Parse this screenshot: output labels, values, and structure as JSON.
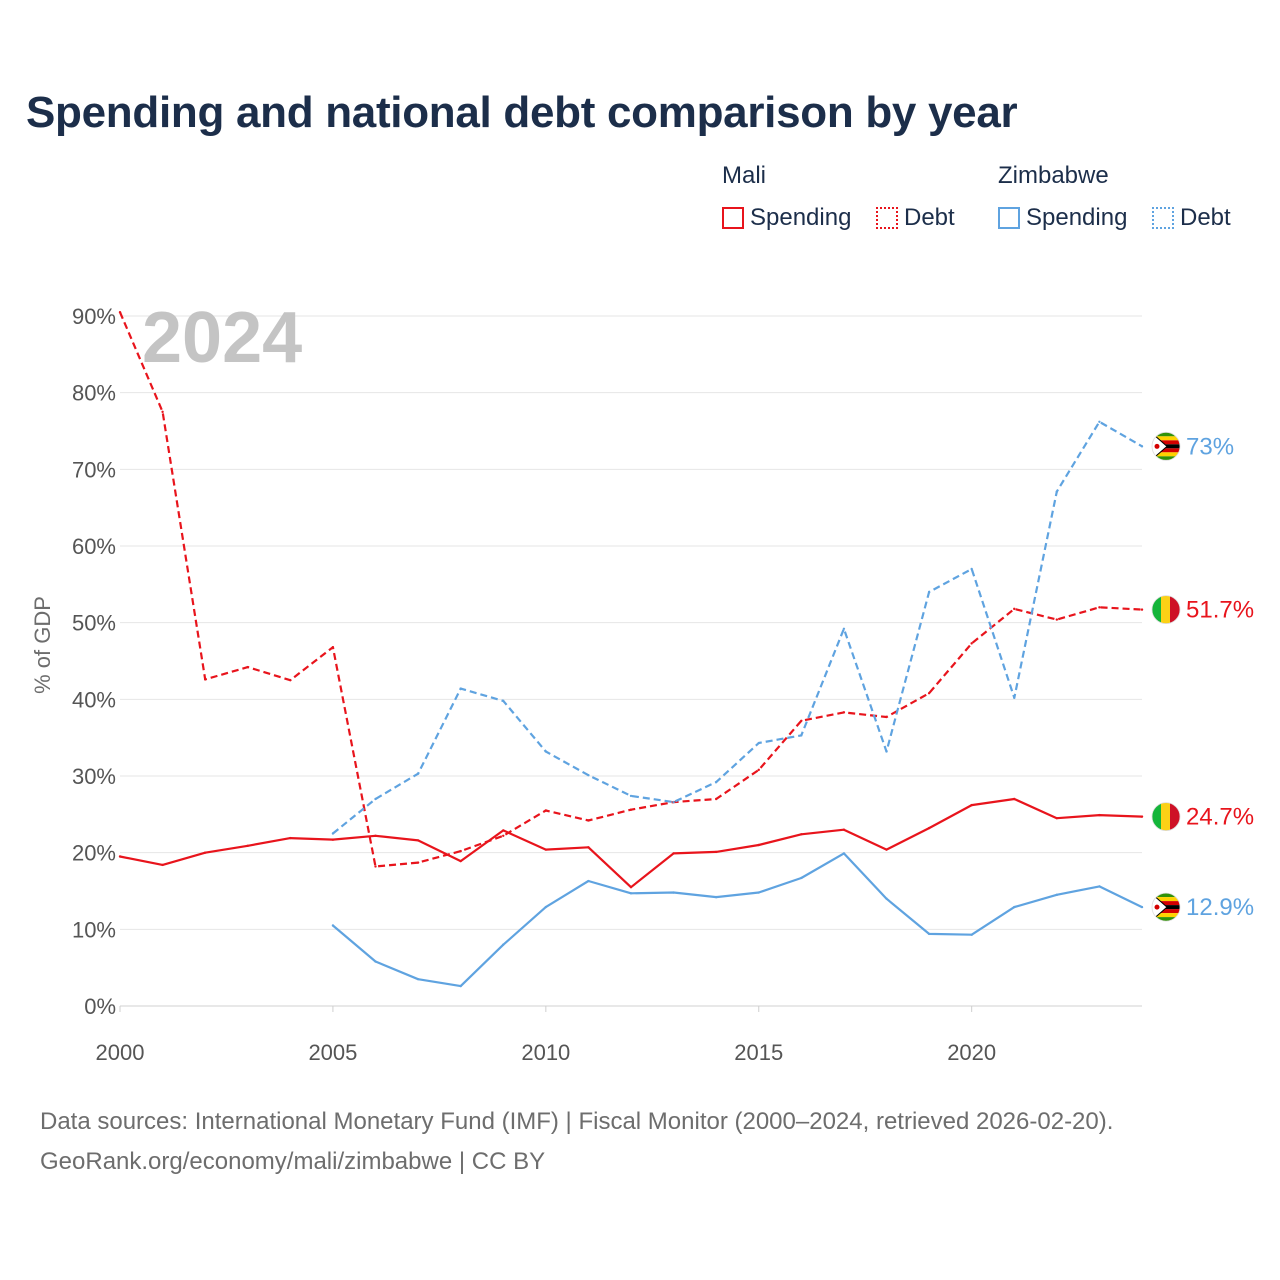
{
  "header": {
    "title": "Spending and national debt comparison by year"
  },
  "legend": {
    "groups": [
      {
        "country": "Mali",
        "spending_label": "Spending",
        "debt_label": "Debt",
        "color": "#e8141c"
      },
      {
        "country": "Zimbabwe",
        "spending_label": "Spending",
        "debt_label": "Debt",
        "color": "#5fa3e0"
      }
    ]
  },
  "chart_data": {
    "type": "line",
    "watermark_year": "2024",
    "ylabel": "% of GDP",
    "xlabel": "",
    "xlim": [
      2000,
      2024
    ],
    "ylim": [
      0,
      90
    ],
    "x_ticks": [
      "2000",
      "2005",
      "2010",
      "2015",
      "2020"
    ],
    "y_ticks": [
      "0%",
      "10%",
      "20%",
      "30%",
      "40%",
      "50%",
      "60%",
      "70%",
      "80%",
      "90%"
    ],
    "series": [
      {
        "name": "Mali Debt",
        "country": "Mali",
        "style": "dashed",
        "color": "#e8141c",
        "end_label": "51.7%",
        "points": [
          [
            2000,
            90.5
          ],
          [
            2001,
            77.5
          ],
          [
            2002,
            42.6
          ],
          [
            2003,
            44.2
          ],
          [
            2004,
            42.5
          ],
          [
            2005,
            46.8
          ],
          [
            2006,
            18.2
          ],
          [
            2007,
            18.7
          ],
          [
            2008,
            20.2
          ],
          [
            2009,
            22.2
          ],
          [
            2010,
            25.5
          ],
          [
            2011,
            24.2
          ],
          [
            2012,
            25.6
          ],
          [
            2013,
            26.6
          ],
          [
            2014,
            27.0
          ],
          [
            2015,
            30.8
          ],
          [
            2016,
            37.2
          ],
          [
            2017,
            38.3
          ],
          [
            2018,
            37.7
          ],
          [
            2019,
            40.8
          ],
          [
            2020,
            47.3
          ],
          [
            2021,
            51.8
          ],
          [
            2022,
            50.4
          ],
          [
            2023,
            52.0
          ],
          [
            2024,
            51.7
          ]
        ]
      },
      {
        "name": "Mali Spending",
        "country": "Mali",
        "style": "solid",
        "color": "#e8141c",
        "end_label": "24.7%",
        "points": [
          [
            2000,
            19.5
          ],
          [
            2001,
            18.4
          ],
          [
            2002,
            20.0
          ],
          [
            2003,
            20.9
          ],
          [
            2004,
            21.9
          ],
          [
            2005,
            21.7
          ],
          [
            2006,
            22.2
          ],
          [
            2007,
            21.6
          ],
          [
            2008,
            18.9
          ],
          [
            2009,
            22.9
          ],
          [
            2010,
            20.4
          ],
          [
            2011,
            20.7
          ],
          [
            2012,
            15.5
          ],
          [
            2013,
            19.9
          ],
          [
            2014,
            20.1
          ],
          [
            2015,
            21.0
          ],
          [
            2016,
            22.4
          ],
          [
            2017,
            23.0
          ],
          [
            2018,
            20.4
          ],
          [
            2019,
            23.2
          ],
          [
            2020,
            26.2
          ],
          [
            2021,
            27.0
          ],
          [
            2022,
            24.5
          ],
          [
            2023,
            24.9
          ],
          [
            2024,
            24.7
          ]
        ]
      },
      {
        "name": "Zimbabwe Debt",
        "country": "Zimbabwe",
        "style": "dashed",
        "color": "#5fa3e0",
        "end_label": "73%",
        "points": [
          [
            2005,
            22.5
          ],
          [
            2006,
            27.0
          ],
          [
            2007,
            30.3
          ],
          [
            2008,
            41.4
          ],
          [
            2009,
            39.8
          ],
          [
            2010,
            33.2
          ],
          [
            2011,
            30.1
          ],
          [
            2012,
            27.4
          ],
          [
            2013,
            26.6
          ],
          [
            2014,
            29.2
          ],
          [
            2015,
            34.3
          ],
          [
            2016,
            35.3
          ],
          [
            2017,
            49.2
          ],
          [
            2018,
            33.2
          ],
          [
            2019,
            54.0
          ],
          [
            2020,
            57.0
          ],
          [
            2021,
            40.2
          ],
          [
            2022,
            67.1
          ],
          [
            2023,
            76.2
          ],
          [
            2024,
            73.0
          ]
        ]
      },
      {
        "name": "Zimbabwe Spending",
        "country": "Zimbabwe",
        "style": "solid",
        "color": "#5fa3e0",
        "end_label": "12.9%",
        "points": [
          [
            2005,
            10.5
          ],
          [
            2006,
            5.8
          ],
          [
            2007,
            3.5
          ],
          [
            2008,
            2.6
          ],
          [
            2009,
            8.0
          ],
          [
            2010,
            12.9
          ],
          [
            2011,
            16.3
          ],
          [
            2012,
            14.7
          ],
          [
            2013,
            14.8
          ],
          [
            2014,
            14.2
          ],
          [
            2015,
            14.8
          ],
          [
            2016,
            16.7
          ],
          [
            2017,
            19.9
          ],
          [
            2018,
            14.0
          ],
          [
            2019,
            9.4
          ],
          [
            2020,
            9.3
          ],
          [
            2021,
            12.9
          ],
          [
            2022,
            14.5
          ],
          [
            2023,
            15.6
          ],
          [
            2024,
            12.9
          ]
        ]
      }
    ]
  },
  "footer": {
    "sources": "Data sources: International Monetary Fund (IMF) | Fiscal Monitor (2000–2024, retrieved 2026-02-20).",
    "attribution": "GeoRank.org/economy/mali/zimbabwe | CC BY"
  }
}
